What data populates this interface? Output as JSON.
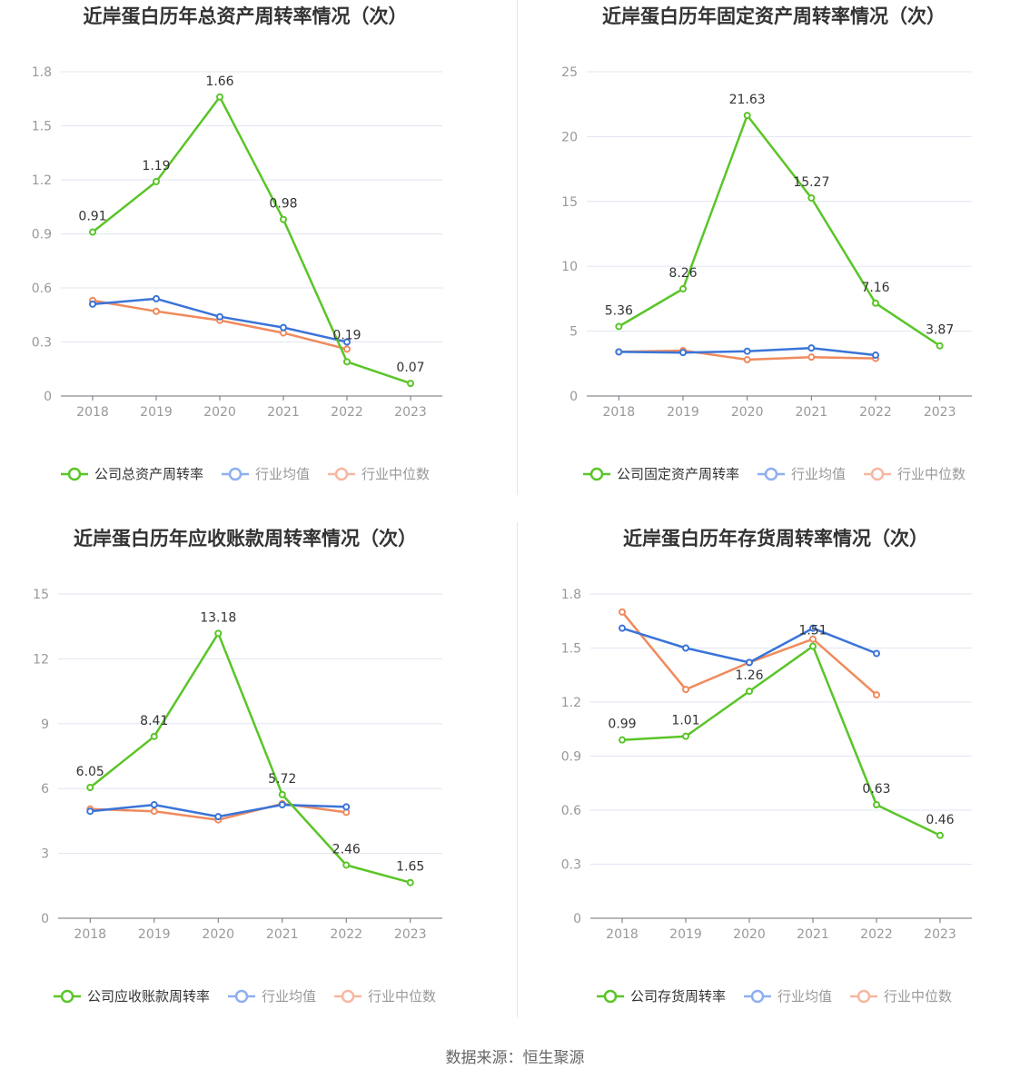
{
  "colors": {
    "company": "#5ac528",
    "avg": "#3a74d8",
    "median": "#f08a5d",
    "avg_legend": "#8eaff0",
    "median_legend": "#f6b7a0",
    "grid": "#e0e6f1",
    "axis": "#6e7079",
    "tick": "#999999"
  },
  "source": "数据来源：恒生聚源",
  "chart_data": [
    {
      "type": "line",
      "title": "近岸蛋白历年总资产周转率情况（次）",
      "categories": [
        "2018",
        "2019",
        "2020",
        "2021",
        "2022",
        "2023"
      ],
      "yticks": [
        "0",
        "0.3",
        "0.6",
        "0.9",
        "1.2",
        "1.5",
        "1.8"
      ],
      "ylim": [
        0,
        1.8
      ],
      "grid": true,
      "legend": "bottom",
      "series": [
        {
          "name": "公司总资产周转率",
          "values": [
            0.91,
            1.19,
            1.66,
            0.98,
            0.19,
            0.07
          ],
          "labels": [
            "0.91",
            "1.19",
            "1.66",
            "0.98",
            "0.19",
            "0.07"
          ]
        },
        {
          "name": "行业均值",
          "values": [
            0.51,
            0.54,
            0.44,
            0.38,
            0.3,
            null
          ]
        },
        {
          "name": "行业中位数",
          "values": [
            0.53,
            0.47,
            0.42,
            0.35,
            0.26,
            null
          ]
        }
      ]
    },
    {
      "type": "line",
      "title": "近岸蛋白历年固定资产周转率情况（次）",
      "categories": [
        "2018",
        "2019",
        "2020",
        "2021",
        "2022",
        "2023"
      ],
      "yticks": [
        "0",
        "5",
        "10",
        "15",
        "20",
        "25"
      ],
      "ylim": [
        0,
        25
      ],
      "grid": true,
      "legend": "bottom",
      "series": [
        {
          "name": "公司固定资产周转率",
          "values": [
            5.36,
            8.26,
            21.63,
            15.27,
            7.16,
            3.87
          ],
          "labels": [
            "5.36",
            "8.26",
            "21.63",
            "15.27",
            "7.16",
            "3.87"
          ]
        },
        {
          "name": "行业均值",
          "values": [
            3.4,
            3.35,
            3.45,
            3.7,
            3.15,
            null
          ]
        },
        {
          "name": "行业中位数",
          "values": [
            3.4,
            3.5,
            2.8,
            3.0,
            2.9,
            null
          ]
        }
      ]
    },
    {
      "type": "line",
      "title": "近岸蛋白历年应收账款周转率情况（次）",
      "categories": [
        "2018",
        "2019",
        "2020",
        "2021",
        "2022",
        "2023"
      ],
      "yticks": [
        "0",
        "3",
        "6",
        "9",
        "12",
        "15"
      ],
      "ylim": [
        0,
        15
      ],
      "grid": true,
      "legend": "bottom",
      "series": [
        {
          "name": "公司应收账款周转率",
          "values": [
            6.05,
            8.41,
            13.18,
            5.72,
            2.46,
            1.65
          ],
          "labels": [
            "6.05",
            "8.41",
            "13.18",
            "5.72",
            "2.46",
            "1.65"
          ]
        },
        {
          "name": "行业均值",
          "values": [
            4.95,
            5.25,
            4.7,
            5.25,
            5.15,
            null
          ]
        },
        {
          "name": "行业中位数",
          "values": [
            5.05,
            4.95,
            4.55,
            5.3,
            4.9,
            null
          ]
        }
      ]
    },
    {
      "type": "line",
      "title": "近岸蛋白历年存货周转率情况（次）",
      "categories": [
        "2018",
        "2019",
        "2020",
        "2021",
        "2022",
        "2023"
      ],
      "yticks": [
        "0",
        "0.3",
        "0.6",
        "0.9",
        "1.2",
        "1.5",
        "1.8"
      ],
      "ylim": [
        0,
        1.8
      ],
      "grid": true,
      "legend": "bottom",
      "series": [
        {
          "name": "公司存货周转率",
          "values": [
            0.99,
            1.01,
            1.26,
            1.51,
            0.63,
            0.46
          ],
          "labels": [
            "0.99",
            "1.01",
            "1.26",
            "1.51",
            "0.63",
            "0.46"
          ]
        },
        {
          "name": "行业均值",
          "values": [
            1.61,
            1.5,
            1.42,
            1.61,
            1.47,
            null
          ]
        },
        {
          "name": "行业中位数",
          "values": [
            1.7,
            1.27,
            1.42,
            1.55,
            1.24,
            null
          ]
        }
      ]
    }
  ]
}
